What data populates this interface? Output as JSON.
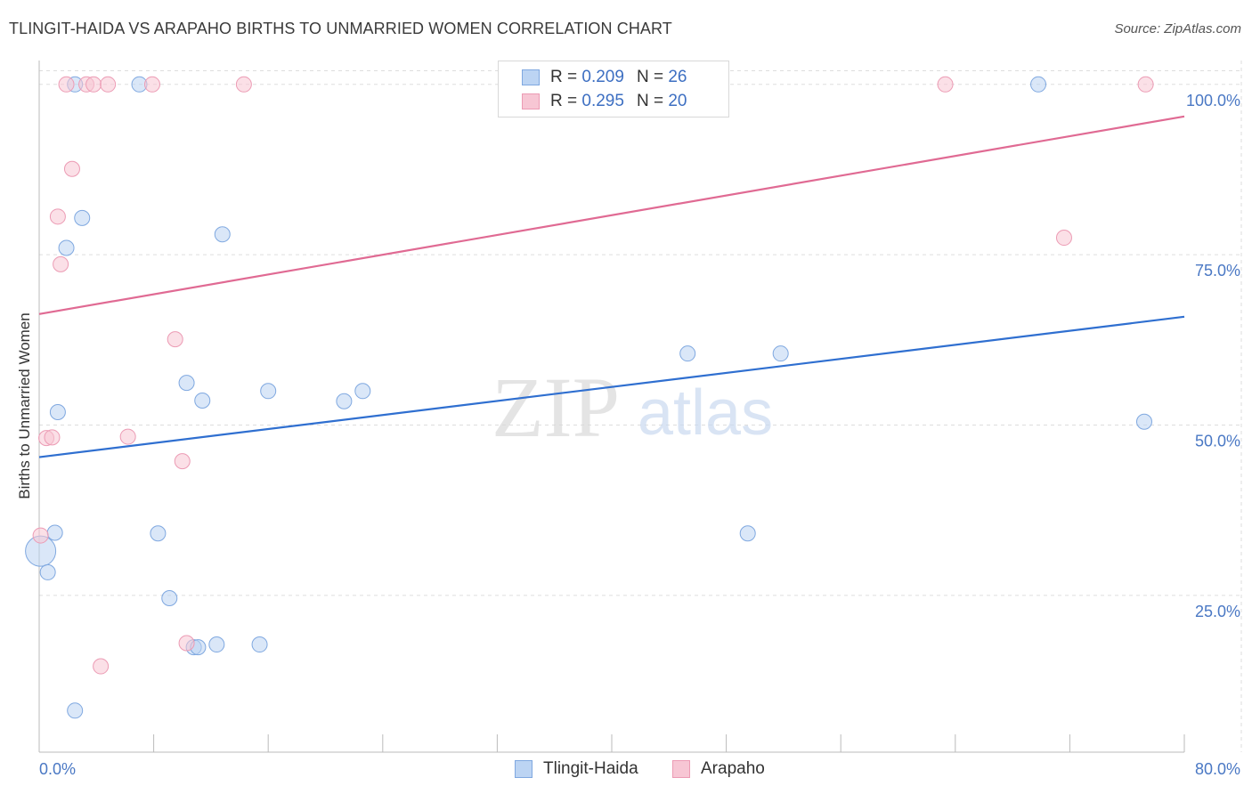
{
  "header": {
    "title": "TLINGIT-HAIDA VS ARAPAHO BIRTHS TO UNMARRIED WOMEN CORRELATION CHART",
    "source": "Source: ZipAtlas.com"
  },
  "watermark": {
    "zip": "ZIP",
    "atlas": "atlas"
  },
  "legend": {
    "rows": [
      {
        "r_label": "R =",
        "r_value": "0.209",
        "n_label": "N =",
        "n_value": "26"
      },
      {
        "r_label": "R =",
        "r_value": "0.295",
        "n_label": "N =",
        "n_value": "20"
      }
    ]
  },
  "colors": {
    "blue_fill": "#bcd4f3",
    "blue_stroke": "#7fa8e0",
    "blue_line": "#2f6fd0",
    "pink_fill": "#f7c6d4",
    "pink_stroke": "#ec9bb4",
    "pink_line": "#e06a93",
    "tick_text": "#4a78c4",
    "grid": "#dddddd"
  },
  "chart_data": {
    "type": "scatter",
    "title": "TLINGIT-HAIDA VS ARAPAHO BIRTHS TO UNMARRIED WOMEN CORRELATION CHART",
    "xlabel": "",
    "ylabel": "Births to Unmarried Women",
    "xlim": [
      0,
      80
    ],
    "ylim": [
      2,
      102
    ],
    "x_tick_labels": [
      "0.0%",
      "80.0%"
    ],
    "y_ticks": [
      25,
      50,
      75,
      100
    ],
    "y_tick_labels": [
      "25.0%",
      "50.0%",
      "75.0%",
      "100.0%"
    ],
    "series": [
      {
        "name": "Tlingit-Haida",
        "color": "blue",
        "trend": {
          "x": [
            0,
            80
          ],
          "y": [
            45.3,
            65.9
          ]
        },
        "points": [
          {
            "x": 2.5,
            "y": 100,
            "s": 1
          },
          {
            "x": 7.0,
            "y": 100,
            "s": 1
          },
          {
            "x": 69.8,
            "y": 100,
            "s": 1
          },
          {
            "x": 3.0,
            "y": 80.4,
            "s": 1
          },
          {
            "x": 12.8,
            "y": 78.0,
            "s": 1
          },
          {
            "x": 1.9,
            "y": 76.0,
            "s": 1
          },
          {
            "x": 45.3,
            "y": 60.5,
            "s": 1
          },
          {
            "x": 51.8,
            "y": 60.5,
            "s": 1
          },
          {
            "x": 10.3,
            "y": 56.2,
            "s": 1
          },
          {
            "x": 16.0,
            "y": 55.0,
            "s": 1
          },
          {
            "x": 22.6,
            "y": 55.0,
            "s": 1
          },
          {
            "x": 11.4,
            "y": 53.6,
            "s": 1
          },
          {
            "x": 21.3,
            "y": 53.5,
            "s": 1
          },
          {
            "x": 1.3,
            "y": 51.9,
            "s": 1
          },
          {
            "x": 77.2,
            "y": 50.5,
            "s": 1
          },
          {
            "x": 1.1,
            "y": 34.2,
            "s": 1
          },
          {
            "x": 8.3,
            "y": 34.1,
            "s": 1
          },
          {
            "x": 49.5,
            "y": 34.1,
            "s": 1
          },
          {
            "x": 0.1,
            "y": 31.5,
            "s": 2
          },
          {
            "x": 0.6,
            "y": 28.4,
            "s": 1
          },
          {
            "x": 9.1,
            "y": 24.6,
            "s": 1
          },
          {
            "x": 12.4,
            "y": 17.8,
            "s": 1
          },
          {
            "x": 15.4,
            "y": 17.8,
            "s": 1
          },
          {
            "x": 10.8,
            "y": 17.4,
            "s": 1
          },
          {
            "x": 11.1,
            "y": 17.4,
            "s": 1
          },
          {
            "x": 2.5,
            "y": 8.1,
            "s": 1
          }
        ]
      },
      {
        "name": "Arapaho",
        "color": "pink",
        "trend": {
          "x": [
            0,
            80
          ],
          "y": [
            66.3,
            95.3
          ]
        },
        "points": [
          {
            "x": 1.9,
            "y": 100,
            "s": 1
          },
          {
            "x": 3.3,
            "y": 100,
            "s": 1
          },
          {
            "x": 3.8,
            "y": 100,
            "s": 1
          },
          {
            "x": 4.8,
            "y": 100,
            "s": 1
          },
          {
            "x": 7.9,
            "y": 100,
            "s": 1
          },
          {
            "x": 14.3,
            "y": 100,
            "s": 1
          },
          {
            "x": 63.3,
            "y": 100,
            "s": 1
          },
          {
            "x": 77.3,
            "y": 100,
            "s": 1
          },
          {
            "x": 2.3,
            "y": 87.6,
            "s": 1
          },
          {
            "x": 1.3,
            "y": 80.6,
            "s": 1
          },
          {
            "x": 71.6,
            "y": 77.5,
            "s": 1
          },
          {
            "x": 1.5,
            "y": 73.6,
            "s": 1
          },
          {
            "x": 9.5,
            "y": 62.6,
            "s": 1
          },
          {
            "x": 0.5,
            "y": 48.1,
            "s": 1
          },
          {
            "x": 0.9,
            "y": 48.2,
            "s": 1
          },
          {
            "x": 6.2,
            "y": 48.3,
            "s": 1
          },
          {
            "x": 10.0,
            "y": 44.7,
            "s": 1
          },
          {
            "x": 0.1,
            "y": 33.8,
            "s": 1
          },
          {
            "x": 10.3,
            "y": 18.0,
            "s": 1
          },
          {
            "x": 4.3,
            "y": 14.6,
            "s": 1
          }
        ]
      }
    ]
  }
}
